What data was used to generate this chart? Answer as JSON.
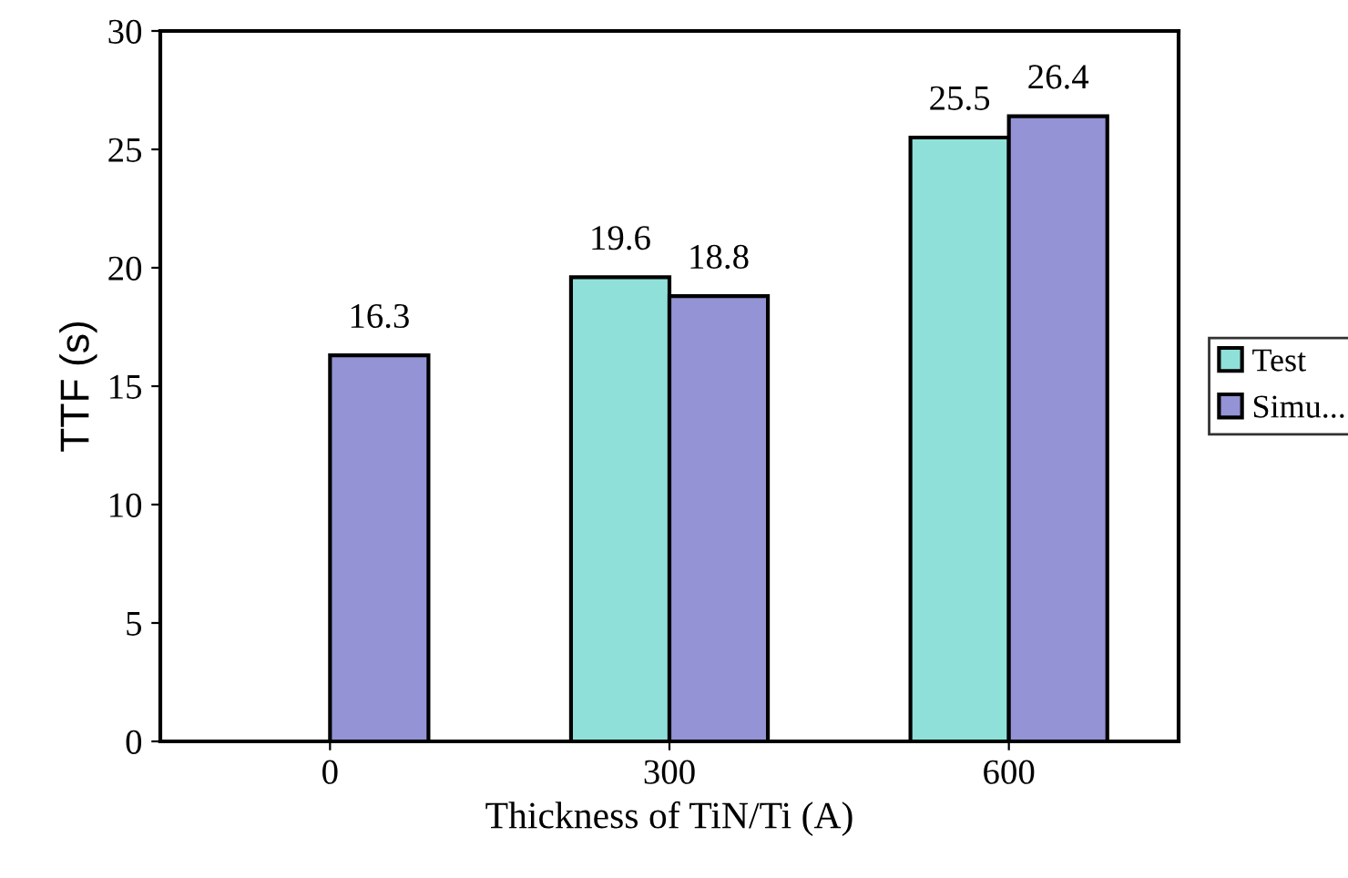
{
  "chart_data": {
    "type": "bar",
    "xlabel": "Thickness of TiN/Ti (A)",
    "ylabel": "TTF (s)",
    "categories": [
      "0",
      "300",
      "600"
    ],
    "series": [
      {
        "name": "Test",
        "color": "#8fe0d8",
        "values": [
          null,
          19.6,
          25.5
        ]
      },
      {
        "name": "Simu...",
        "color": "#9393d6",
        "values": [
          16.3,
          18.8,
          26.4
        ]
      }
    ],
    "ylim": [
      0,
      30
    ],
    "yticks": [
      0,
      5,
      10,
      15,
      20,
      25,
      30
    ],
    "data_labels": true,
    "legend": "right",
    "grid": false
  }
}
